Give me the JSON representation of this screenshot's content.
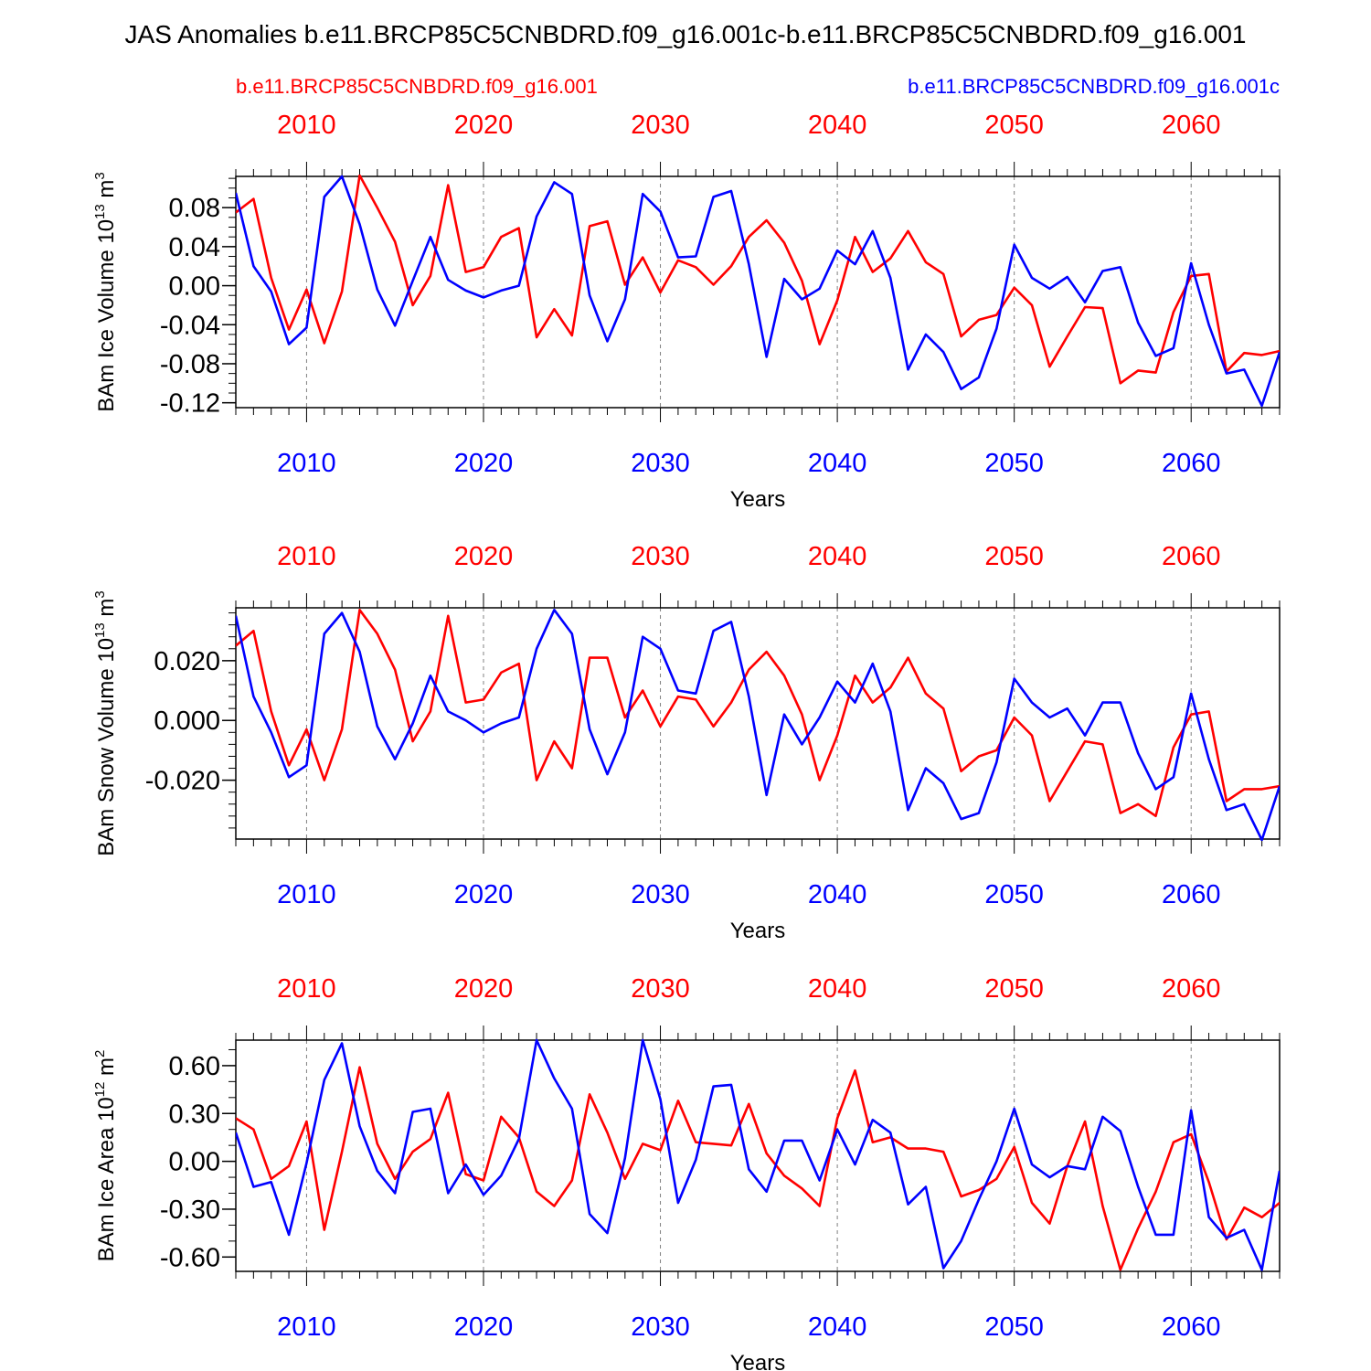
{
  "title": "JAS Anomalies b.e11.BRCP85C5CNBDRD.f09_g16.001c-b.e11.BRCP85C5CNBDRD.f09_g16.001",
  "legend": {
    "red_label": "b.e11.BRCP85C5CNBDRD.f09_g16.001",
    "blue_label": "b.e11.BRCP85C5CNBDRD.f09_g16.001c"
  },
  "colors": {
    "red": "#ff0000",
    "blue": "#0000ff",
    "axis": "#000000",
    "grid": "#808080"
  },
  "chart_data": [
    {
      "type": "line",
      "title": "",
      "xlabel": "Years",
      "ylabel": "BAm Ice Volume 10",
      "ylabel_exp": "13",
      "ylabel_unit": " m",
      "ylabel_unit_exp": "3",
      "xlim": [
        2006,
        2065
      ],
      "ylim": [
        -0.125,
        0.112
      ],
      "xticks": [
        2010,
        2020,
        2030,
        2040,
        2050,
        2060
      ],
      "xtick_labels": [
        "2010",
        "2020",
        "2030",
        "2040",
        "2050",
        "2060"
      ],
      "yticks": [
        -0.12,
        -0.08,
        -0.04,
        0.0,
        0.04,
        0.08
      ],
      "ytick_labels": [
        "-0.12",
        "-0.08",
        "-0.04",
        "0.00",
        "0.04",
        "0.08"
      ],
      "yminor_step": 0.01,
      "grid": "vertical dashed at decades",
      "x_start": 2006,
      "series": [
        {
          "name": "b.e11.BRCP85C5CNBDRD.f09_g16.001",
          "color": "red",
          "values": [
            0.075,
            0.089,
            0.008,
            -0.045,
            -0.004,
            -0.059,
            -0.006,
            0.113,
            0.08,
            0.045,
            -0.02,
            0.01,
            0.103,
            0.014,
            0.019,
            0.05,
            0.059,
            -0.053,
            -0.024,
            -0.051,
            0.061,
            0.066,
            0.001,
            0.029,
            -0.007,
            0.026,
            0.019,
            0.001,
            0.02,
            0.05,
            0.067,
            0.044,
            0.005,
            -0.06,
            -0.015,
            0.05,
            0.014,
            0.028,
            0.056,
            0.024,
            0.012,
            -0.052,
            -0.035,
            -0.03,
            -0.002,
            -0.02,
            -0.083,
            -0.052,
            -0.022,
            -0.023,
            -0.1,
            -0.087,
            -0.089,
            -0.027,
            0.01,
            0.012,
            -0.088,
            -0.069,
            -0.071,
            -0.067
          ]
        },
        {
          "name": "b.e11.BRCP85C5CNBDRD.f09_g16.001c",
          "color": "blue",
          "values": [
            0.095,
            0.02,
            -0.006,
            -0.06,
            -0.043,
            0.091,
            0.112,
            0.063,
            -0.004,
            -0.041,
            0.005,
            0.05,
            0.006,
            -0.005,
            -0.012,
            -0.005,
            0.0,
            0.071,
            0.106,
            0.094,
            -0.01,
            -0.057,
            -0.014,
            0.094,
            0.076,
            0.029,
            0.03,
            0.091,
            0.097,
            0.022,
            -0.073,
            0.007,
            -0.014,
            -0.003,
            0.036,
            0.022,
            0.056,
            0.008,
            -0.086,
            -0.05,
            -0.068,
            -0.106,
            -0.094,
            -0.044,
            0.042,
            0.008,
            -0.003,
            0.009,
            -0.017,
            0.015,
            0.019,
            -0.038,
            -0.072,
            -0.064,
            0.023,
            -0.04,
            -0.09,
            -0.086,
            -0.123,
            -0.068
          ]
        }
      ]
    },
    {
      "type": "line",
      "title": "",
      "xlabel": "Years",
      "ylabel": "BAm Snow Volume 10",
      "ylabel_exp": "13",
      "ylabel_unit": " m",
      "ylabel_unit_exp": "3",
      "xlim": [
        2006,
        2065
      ],
      "ylim": [
        -0.0397,
        0.0377
      ],
      "xticks": [
        2010,
        2020,
        2030,
        2040,
        2050,
        2060
      ],
      "xtick_labels": [
        "2010",
        "2020",
        "2030",
        "2040",
        "2050",
        "2060"
      ],
      "yticks": [
        -0.02,
        0.0,
        0.02
      ],
      "ytick_labels": [
        "-0.020",
        "0.000",
        "0.020"
      ],
      "yminor_step": 0.004,
      "grid": "vertical dashed at decades",
      "x_start": 2006,
      "series": [
        {
          "name": "b.e11.BRCP85C5CNBDRD.f09_g16.001",
          "color": "red",
          "values": [
            0.025,
            0.03,
            0.003,
            -0.015,
            -0.003,
            -0.02,
            -0.003,
            0.037,
            0.029,
            0.017,
            -0.007,
            0.003,
            0.035,
            0.006,
            0.007,
            0.016,
            0.019,
            -0.02,
            -0.007,
            -0.016,
            0.021,
            0.021,
            0.001,
            0.01,
            -0.002,
            0.008,
            0.007,
            -0.002,
            0.006,
            0.017,
            0.023,
            0.015,
            0.002,
            -0.02,
            -0.005,
            0.015,
            0.006,
            0.011,
            0.021,
            0.009,
            0.004,
            -0.017,
            -0.012,
            -0.01,
            0.001,
            -0.005,
            -0.027,
            -0.017,
            -0.007,
            -0.008,
            -0.031,
            -0.028,
            -0.032,
            -0.009,
            0.002,
            0.003,
            -0.027,
            -0.023,
            -0.023,
            -0.022
          ]
        },
        {
          "name": "b.e11.BRCP85C5CNBDRD.f09_g16.001c",
          "color": "blue",
          "values": [
            0.035,
            0.008,
            -0.004,
            -0.019,
            -0.015,
            0.029,
            0.036,
            0.023,
            -0.002,
            -0.013,
            -0.001,
            0.015,
            0.003,
            0.0,
            -0.004,
            -0.001,
            0.001,
            0.024,
            0.037,
            0.029,
            -0.003,
            -0.018,
            -0.004,
            0.028,
            0.024,
            0.01,
            0.009,
            0.03,
            0.033,
            0.008,
            -0.025,
            0.002,
            -0.008,
            0.001,
            0.013,
            0.006,
            0.019,
            0.003,
            -0.03,
            -0.016,
            -0.021,
            -0.033,
            -0.031,
            -0.014,
            0.014,
            0.006,
            0.001,
            0.004,
            -0.005,
            0.006,
            0.006,
            -0.011,
            -0.023,
            -0.019,
            0.009,
            -0.013,
            -0.03,
            -0.028,
            -0.04,
            -0.022
          ]
        }
      ]
    },
    {
      "type": "line",
      "title": "",
      "xlabel": "Years",
      "ylabel": "BAm Ice Area 10",
      "ylabel_exp": "12",
      "ylabel_unit": " m",
      "ylabel_unit_exp": "2",
      "xlim": [
        2006,
        2065
      ],
      "ylim": [
        -0.69,
        0.76
      ],
      "xticks": [
        2010,
        2020,
        2030,
        2040,
        2050,
        2060
      ],
      "xtick_labels": [
        "2010",
        "2020",
        "2030",
        "2040",
        "2050",
        "2060"
      ],
      "yticks": [
        -0.6,
        -0.3,
        0.0,
        0.3,
        0.6
      ],
      "ytick_labels": [
        "-0.60",
        "-0.30",
        "0.00",
        "0.30",
        "0.60"
      ],
      "yminor_step": 0.1,
      "grid": "vertical dashed at decades",
      "x_start": 2006,
      "series": [
        {
          "name": "b.e11.BRCP85C5CNBDRD.f09_g16.001",
          "color": "red",
          "values": [
            0.27,
            0.2,
            -0.11,
            -0.03,
            0.25,
            -0.43,
            0.06,
            0.59,
            0.11,
            -0.11,
            0.06,
            0.14,
            0.43,
            -0.08,
            -0.12,
            0.28,
            0.15,
            -0.19,
            -0.28,
            -0.12,
            0.42,
            0.18,
            -0.11,
            0.11,
            0.07,
            0.38,
            0.12,
            0.11,
            0.1,
            0.36,
            0.05,
            -0.09,
            -0.17,
            -0.28,
            0.27,
            0.57,
            0.12,
            0.15,
            0.08,
            0.08,
            0.06,
            -0.22,
            -0.18,
            -0.11,
            0.09,
            -0.26,
            -0.39,
            -0.03,
            0.25,
            -0.28,
            -0.68,
            -0.42,
            -0.19,
            0.12,
            0.17,
            -0.13,
            -0.49,
            -0.29,
            -0.35,
            -0.26
          ]
        },
        {
          "name": "b.e11.BRCP85C5CNBDRD.f09_g16.001c",
          "color": "blue",
          "values": [
            0.18,
            -0.16,
            -0.13,
            -0.46,
            -0.01,
            0.51,
            0.74,
            0.22,
            -0.06,
            -0.2,
            0.31,
            0.33,
            -0.2,
            -0.02,
            -0.21,
            -0.09,
            0.14,
            0.76,
            0.52,
            0.33,
            -0.33,
            -0.45,
            0.02,
            0.76,
            0.39,
            -0.26,
            0.01,
            0.47,
            0.48,
            -0.05,
            -0.19,
            0.13,
            0.13,
            -0.12,
            0.2,
            -0.02,
            0.26,
            0.18,
            -0.27,
            -0.16,
            -0.67,
            -0.5,
            -0.24,
            0.0,
            0.33,
            -0.02,
            -0.1,
            -0.03,
            -0.05,
            0.28,
            0.19,
            -0.16,
            -0.46,
            -0.46,
            0.32,
            -0.35,
            -0.48,
            -0.43,
            -0.68,
            -0.06
          ]
        }
      ]
    }
  ]
}
